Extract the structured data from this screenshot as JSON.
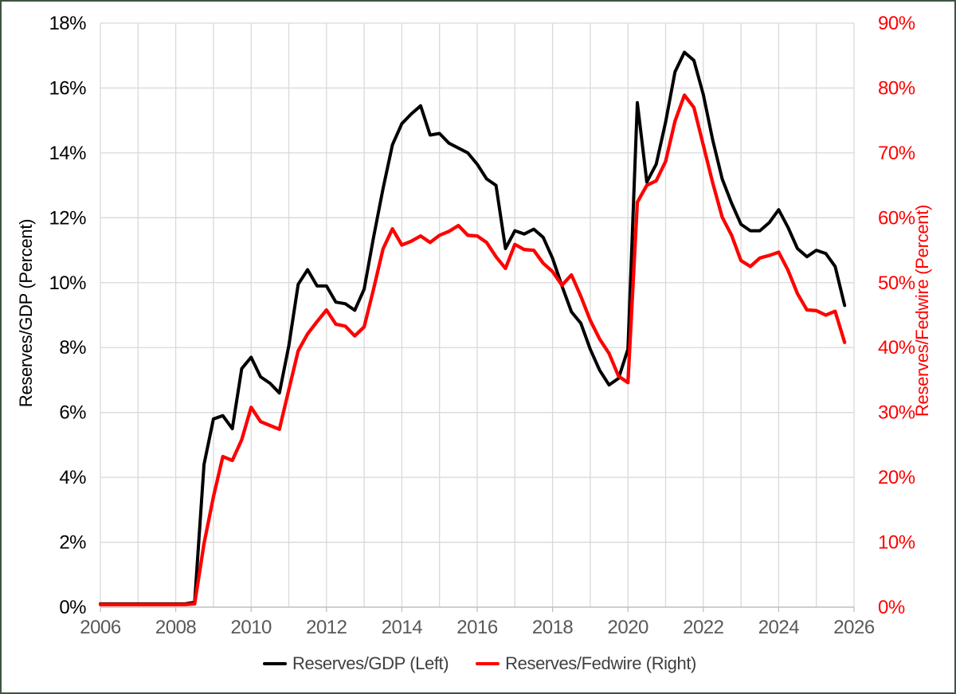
{
  "chart_data": {
    "type": "line",
    "title": "",
    "x": [
      2006.0,
      2006.25,
      2006.5,
      2006.75,
      2007.0,
      2007.25,
      2007.5,
      2007.75,
      2008.0,
      2008.25,
      2008.5,
      2008.75,
      2009.0,
      2009.25,
      2009.5,
      2009.75,
      2010.0,
      2010.25,
      2010.5,
      2010.75,
      2011.0,
      2011.25,
      2011.5,
      2011.75,
      2012.0,
      2012.25,
      2012.5,
      2012.75,
      2013.0,
      2013.25,
      2013.5,
      2013.75,
      2014.0,
      2014.25,
      2014.5,
      2014.75,
      2015.0,
      2015.25,
      2015.5,
      2015.75,
      2016.0,
      2016.25,
      2016.5,
      2016.75,
      2017.0,
      2017.25,
      2017.5,
      2017.75,
      2018.0,
      2018.25,
      2018.5,
      2018.75,
      2019.0,
      2019.25,
      2019.5,
      2019.75,
      2020.0,
      2020.25,
      2020.5,
      2020.75,
      2021.0,
      2021.25,
      2021.5,
      2021.75,
      2022.0,
      2022.25,
      2022.5,
      2022.75,
      2023.0,
      2023.25,
      2023.5,
      2023.75,
      2024.0,
      2024.25,
      2024.5,
      2024.75,
      2025.0,
      2025.25,
      2025.5,
      2025.75
    ],
    "series": [
      {
        "name": "Reserves/GDP (Left)",
        "axis": "left",
        "color": "#000000",
        "values": [
          0.1,
          0.1,
          0.1,
          0.1,
          0.1,
          0.1,
          0.1,
          0.1,
          0.1,
          0.1,
          0.15,
          4.4,
          5.8,
          5.9,
          5.5,
          7.35,
          7.7,
          7.1,
          6.9,
          6.6,
          8.05,
          9.95,
          10.4,
          9.9,
          9.9,
          9.4,
          9.35,
          9.15,
          9.8,
          11.4,
          12.9,
          14.25,
          14.9,
          15.2,
          15.45,
          14.55,
          14.6,
          14.3,
          14.15,
          14.0,
          13.65,
          13.2,
          13.0,
          11.05,
          11.6,
          11.5,
          11.65,
          11.4,
          10.75,
          9.9,
          9.1,
          8.75,
          7.95,
          7.3,
          6.85,
          7.05,
          7.95,
          15.55,
          13.1,
          13.65,
          14.95,
          16.5,
          17.1,
          16.85,
          15.8,
          14.4,
          13.2,
          12.45,
          11.8,
          11.6,
          11.6,
          11.85,
          12.25,
          11.7,
          11.05,
          10.8,
          11.0,
          10.9,
          10.5,
          9.3
        ]
      },
      {
        "name": "Reserves/Fedwire (Right)",
        "axis": "right",
        "color": "#FF0000",
        "values": [
          0.4,
          0.4,
          0.4,
          0.4,
          0.4,
          0.4,
          0.4,
          0.4,
          0.4,
          0.4,
          0.5,
          9.8,
          17.0,
          23.2,
          22.6,
          25.8,
          30.8,
          28.6,
          28.0,
          27.4,
          33.5,
          39.5,
          42.1,
          44.0,
          45.8,
          43.6,
          43.3,
          41.8,
          43.2,
          49.0,
          55.2,
          58.3,
          55.8,
          56.4,
          57.2,
          56.2,
          57.3,
          57.9,
          58.8,
          57.3,
          57.2,
          56.2,
          54.0,
          52.2,
          55.9,
          55.1,
          55.0,
          53.0,
          51.7,
          49.6,
          51.2,
          47.9,
          44.2,
          41.3,
          39.1,
          35.6,
          34.6,
          62.4,
          65.0,
          65.7,
          68.7,
          74.9,
          78.9,
          77.0,
          71.2,
          65.4,
          60.1,
          57.3,
          53.4,
          52.5,
          53.8,
          54.2,
          54.7,
          51.9,
          48.3,
          45.8,
          45.7,
          45.0,
          45.6,
          40.8
        ]
      }
    ],
    "axes": {
      "x": {
        "min": 2006,
        "max": 2026,
        "gridline_step": 1,
        "tick_step": 2,
        "tick_labels": [
          "2006",
          "2008",
          "2010",
          "2012",
          "2014",
          "2016",
          "2018",
          "2020",
          "2022",
          "2024",
          "2026"
        ]
      },
      "left": {
        "title": "Reserves/GDP (Percent)",
        "min": 0,
        "max": 18,
        "tick_step": 2,
        "tick_labels": [
          "0%",
          "2%",
          "4%",
          "6%",
          "8%",
          "10%",
          "12%",
          "14%",
          "16%",
          "18%"
        ]
      },
      "right": {
        "title": "Reserves/Fedwire (Percent)",
        "min": 0,
        "max": 90,
        "tick_step": 10,
        "tick_labels": [
          "0%",
          "10%",
          "20%",
          "30%",
          "40%",
          "50%",
          "60%",
          "70%",
          "80%",
          "90%"
        ]
      }
    },
    "legend": {
      "position": "bottom",
      "entries": [
        "Reserves/GDP (Left)",
        "Reserves/Fedwire (Right)"
      ]
    },
    "grid": true
  },
  "styles": {
    "background": "#FFFFFF",
    "border_color": "#3E5442",
    "grid_color": "#D9D9D9",
    "axis_line_color": "#BFBFBF",
    "x_label_color": "#595959",
    "left_label_color": "#000000",
    "right_label_color": "#FF0000",
    "legend_text_color": "#404040",
    "series_black": "#000000",
    "series_red": "#FF0000"
  }
}
